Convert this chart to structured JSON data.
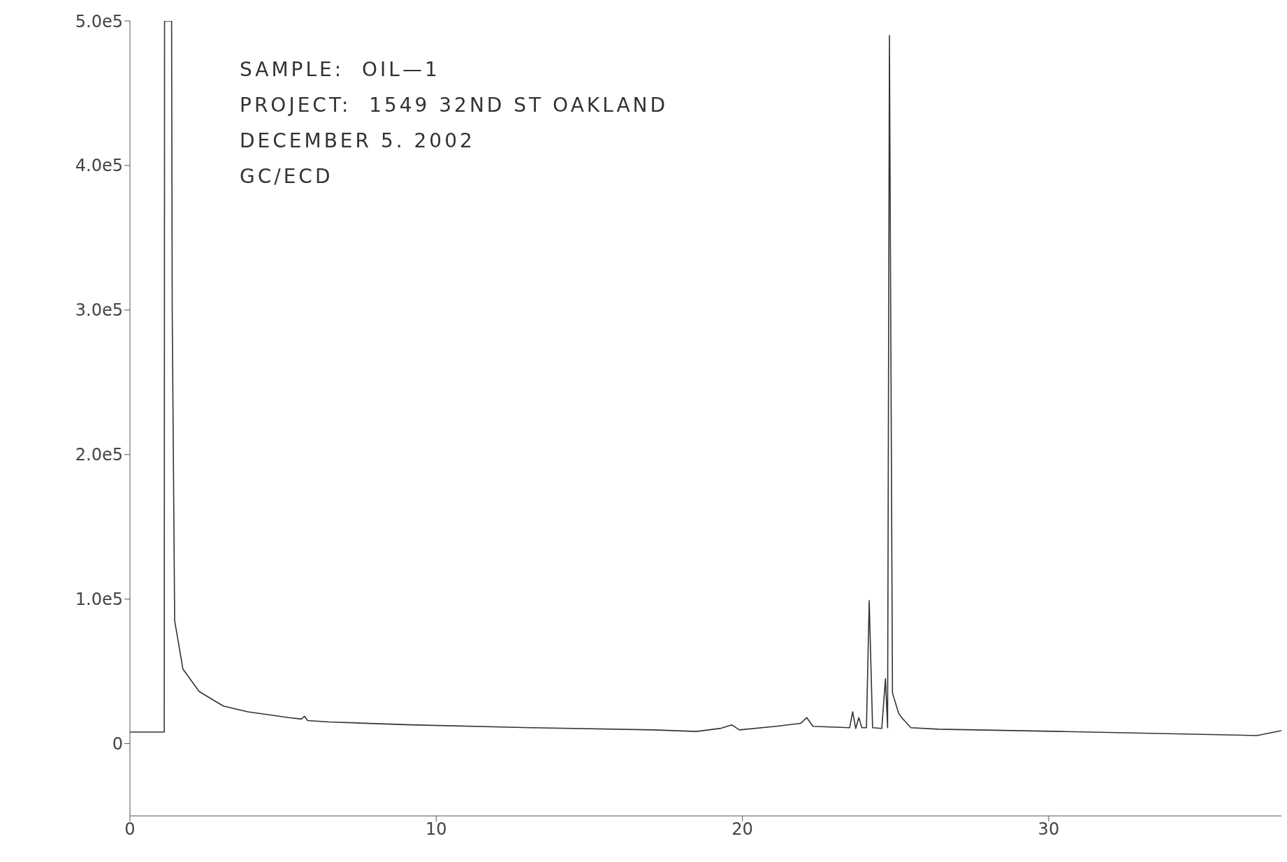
{
  "chart_data": {
    "type": "line",
    "annotations": [
      "SAMPLE:  OIL—1",
      "PROJECT:  1549 32ND ST OAKLAND",
      "DECEMBER 5. 2002",
      "GC/ECD"
    ],
    "xlim": [
      0,
      37.6
    ],
    "xticks": [
      0,
      10,
      20,
      30
    ],
    "ylim": [
      -50000,
      500000
    ],
    "yticks": [
      0,
      {
        "value": 100000,
        "label": "1.0e5"
      },
      {
        "value": 200000,
        "label": "2.0e5"
      },
      {
        "value": 300000,
        "label": "3.0e5"
      },
      {
        "value": 400000,
        "label": "4.0e5"
      },
      {
        "value": 500000,
        "label": "5.0e5"
      }
    ],
    "marker": "none",
    "line_style": "solid",
    "series": [
      {
        "color": "#333333",
        "x": [
          0,
          1.12,
          1.13,
          1.36,
          1.38,
          1.46,
          1.73,
          2.26,
          3.05,
          3.85,
          5.18,
          5.6,
          5.7,
          5.8,
          6.5,
          9.16,
          13.1,
          17.1,
          18.5,
          19.3,
          19.65,
          19.9,
          21.1,
          21.9,
          22.1,
          22.3,
          23.5,
          23.6,
          23.7,
          23.8,
          23.9,
          24.05,
          24.14,
          24.25,
          24.55,
          24.67,
          24.74,
          24.8,
          24.9,
          25.1,
          25.2,
          25.5,
          26.4,
          30.4,
          34.4,
          36.8,
          37.6
        ],
        "values": [
          8000,
          8000,
          500000,
          500000,
          300000,
          85000,
          51600,
          36000,
          26000,
          22000,
          18000,
          17000,
          19000,
          16000,
          15000,
          13000,
          11000,
          9500,
          8400,
          10600,
          13000,
          9500,
          12000,
          14000,
          18000,
          12000,
          11000,
          22000,
          10500,
          18000,
          11000,
          11000,
          99000,
          11000,
          10500,
          45000,
          11000,
          490000,
          35000,
          21000,
          18000,
          11000,
          10000,
          8400,
          6700,
          5600,
          9000
        ]
      }
    ]
  }
}
